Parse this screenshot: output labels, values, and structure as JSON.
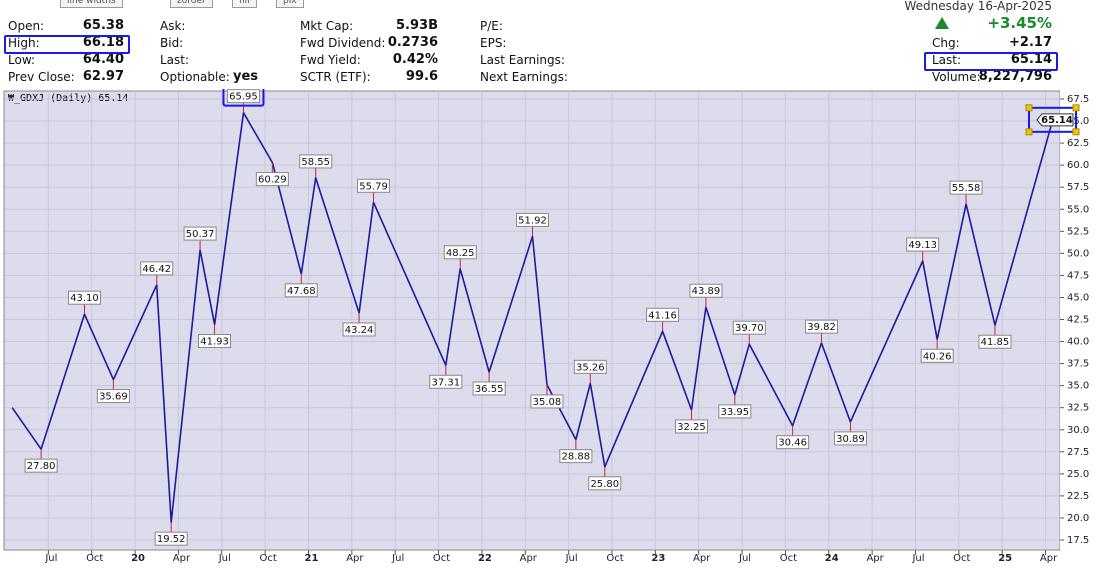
{
  "toolbar": [
    "line widths",
    "zorder",
    "fill",
    "pix"
  ],
  "quote": {
    "columns": [
      [
        {
          "label": "Open:",
          "value": "65.38"
        },
        {
          "label": "High:",
          "value": "66.18"
        },
        {
          "label": "Low:",
          "value": "64.40"
        },
        {
          "label": "Prev Close:",
          "value": "62.97"
        }
      ],
      [
        {
          "label": "Ask:"
        },
        {
          "label": "Bid:"
        },
        {
          "label": "Last:"
        },
        {
          "label": "Optionable:",
          "value": "yes"
        }
      ],
      [
        {
          "label": "Mkt Cap:",
          "value": "5.93B"
        },
        {
          "label": "Fwd Dividend:",
          "value": "0.2736"
        },
        {
          "label": "Fwd Yield:",
          "value": "0.42%"
        },
        {
          "label": "SCTR (ETF):",
          "value": "99.6"
        }
      ],
      [
        {
          "label": "P/E:"
        },
        {
          "label": "EPS:"
        },
        {
          "label": "Last Earnings:"
        },
        {
          "label": "Next Earnings:"
        }
      ]
    ],
    "date": "Wednesday 16-Apr-2025",
    "change_pct": "+3.45%",
    "right_rows": [
      {
        "label": "Chg:",
        "value": "+2.17"
      },
      {
        "label": "Last:",
        "value": "65.14"
      },
      {
        "label": "Volume:",
        "value": "8,227,796"
      }
    ]
  },
  "chart_data": {
    "type": "line",
    "title": "₩_GDXJ (Daily) 65.14",
    "x": [
      "2019-04",
      "2019-06",
      "2019-09",
      "2019-11",
      "2020-02",
      "2020-03",
      "2020-05",
      "2020-06",
      "2020-08",
      "2020-10",
      "2020-12",
      "2021-01",
      "2021-04",
      "2021-05",
      "2021-10",
      "2021-11",
      "2022-01",
      "2022-04",
      "2022-05",
      "2022-07",
      "2022-08",
      "2022-09",
      "2023-01",
      "2023-03",
      "2023-04",
      "2023-06",
      "2023-07",
      "2023-10",
      "2023-12",
      "2024-02",
      "2024-07",
      "2024-08",
      "2024-10",
      "2024-12",
      "2025-04"
    ],
    "values": [
      32.5,
      27.8,
      43.1,
      35.69,
      46.42,
      19.52,
      50.37,
      41.93,
      65.95,
      60.29,
      47.68,
      58.55,
      43.24,
      55.79,
      37.31,
      48.25,
      36.55,
      51.92,
      35.08,
      28.88,
      35.26,
      25.8,
      41.16,
      32.25,
      43.89,
      33.95,
      39.7,
      30.46,
      39.82,
      30.89,
      49.13,
      40.26,
      55.58,
      41.85,
      65.14
    ],
    "value_labels": [
      null,
      "27.80",
      "43.10",
      "35.69",
      "46.42",
      "19.52",
      "50.37",
      "41.93",
      "65.95",
      "60.29",
      "47.68",
      "58.55",
      "43.24",
      "55.79",
      "37.31",
      "48.25",
      "36.55",
      "51.92",
      "35.08",
      "28.88",
      "35.26",
      "25.80",
      "41.16",
      "32.25",
      "43.89",
      "33.95",
      "39.70",
      "30.46",
      "39.82",
      "30.89",
      "49.13",
      "40.26",
      "55.58",
      "41.85",
      "65.14"
    ],
    "color": "#1c1c9c",
    "xlim": [
      "2019-04",
      "2025-05"
    ],
    "xticks": [
      {
        "value": "2019-07",
        "label": "Jul"
      },
      {
        "value": "2019-10",
        "label": "Oct"
      },
      {
        "value": "2020-01",
        "label": "20"
      },
      {
        "value": "2020-04",
        "label": "Apr"
      },
      {
        "value": "2020-07",
        "label": "Jul"
      },
      {
        "value": "2020-10",
        "label": "Oct"
      },
      {
        "value": "2021-01",
        "label": "21"
      },
      {
        "value": "2021-04",
        "label": "Apr"
      },
      {
        "value": "2021-07",
        "label": "Jul"
      },
      {
        "value": "2021-10",
        "label": "Oct"
      },
      {
        "value": "2022-01",
        "label": "22"
      },
      {
        "value": "2022-04",
        "label": "Apr"
      },
      {
        "value": "2022-07",
        "label": "Jul"
      },
      {
        "value": "2022-10",
        "label": "Oct"
      },
      {
        "value": "2023-01",
        "label": "23"
      },
      {
        "value": "2023-04",
        "label": "Apr"
      },
      {
        "value": "2023-07",
        "label": "Jul"
      },
      {
        "value": "2023-10",
        "label": "Oct"
      },
      {
        "value": "2024-01",
        "label": "24"
      },
      {
        "value": "2024-04",
        "label": "Apr"
      },
      {
        "value": "2024-07",
        "label": "Jul"
      },
      {
        "value": "2024-10",
        "label": "Oct"
      },
      {
        "value": "2025-01",
        "label": "25"
      },
      {
        "value": "2025-04",
        "label": "Apr"
      }
    ],
    "ylim": [
      17.5,
      67.5
    ],
    "yticks": [
      17.5,
      {
        "value": 20,
        "label": "20.0"
      },
      22.5,
      {
        "value": 25,
        "label": "25.0"
      },
      27.5,
      {
        "value": 30,
        "label": "30.0"
      },
      32.5,
      {
        "value": 35,
        "label": "35.0"
      },
      37.5,
      {
        "value": 40,
        "label": "40.0"
      },
      42.5,
      {
        "value": 45,
        "label": "45.0"
      },
      47.5,
      {
        "value": 50,
        "label": "50.0"
      },
      52.5,
      {
        "value": 55,
        "label": "55.0"
      },
      57.5,
      {
        "value": 60,
        "label": "60.0"
      },
      62.5,
      {
        "value": 65,
        "label": "65.0"
      },
      67.5
    ],
    "grid": true
  }
}
